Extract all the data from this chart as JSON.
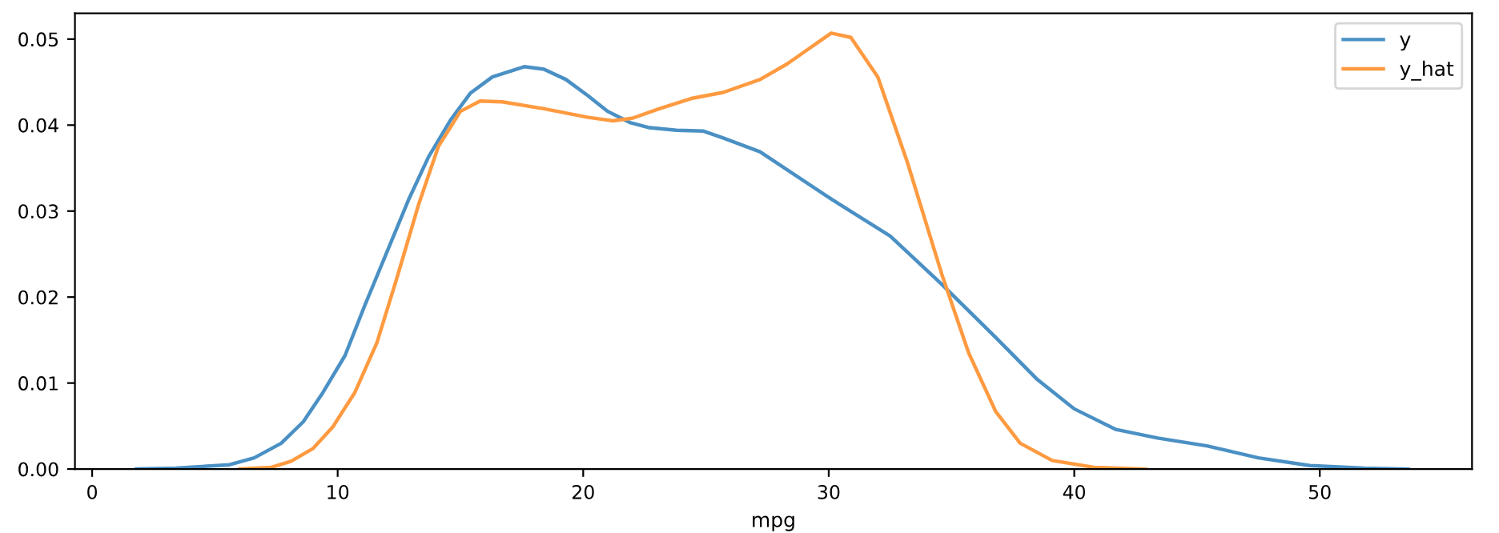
{
  "chart_data": {
    "type": "line",
    "xlabel": "mpg",
    "xlim": [
      -0.7,
      56.2
    ],
    "ylim": [
      0,
      0.053
    ],
    "xticks": [
      0,
      10,
      20,
      30,
      40,
      50
    ],
    "yticks": [
      {
        "value": 0,
        "label": "0.00"
      },
      {
        "value": 0.01,
        "label": "0.01"
      },
      {
        "value": 0.02,
        "label": "0.02"
      },
      {
        "value": 0.03,
        "label": "0.03"
      },
      {
        "value": 0.04,
        "label": "0.04"
      },
      {
        "value": 0.05,
        "label": "0.05"
      }
    ],
    "grid": false,
    "legend": "top right",
    "marker": "none",
    "line_style": "solid",
    "series": [
      {
        "name": "y",
        "color": "#4a90c4",
        "x": [
          1.8,
          3.4,
          5.6,
          6.6,
          7.7,
          8.6,
          9.4,
          10.3,
          11.1,
          12.0,
          12.9,
          13.7,
          14.6,
          15.4,
          16.3,
          17.6,
          18.4,
          19.3,
          20.2,
          21.0,
          21.9,
          22.7,
          23.8,
          24.9,
          25.7,
          27.2,
          30.1,
          32.5,
          34.6,
          36.8,
          38.5,
          40.0,
          41.7,
          43.4,
          45.4,
          47.5,
          49.6,
          51.8,
          53.6
        ],
        "values": [
          0,
          0.0001,
          0.0005,
          0.0013,
          0.003,
          0.0055,
          0.0089,
          0.0132,
          0.019,
          0.0252,
          0.0314,
          0.0363,
          0.0406,
          0.0437,
          0.0456,
          0.0468,
          0.0465,
          0.0453,
          0.0434,
          0.0416,
          0.0403,
          0.0397,
          0.0394,
          0.0393,
          0.0385,
          0.0369,
          0.0314,
          0.0271,
          0.0215,
          0.0153,
          0.0104,
          0.007,
          0.0046,
          0.0036,
          0.0027,
          0.0013,
          0.0004,
          0.0001,
          0
        ]
      },
      {
        "name": "y_hat",
        "color": "#ff9a40",
        "x": [
          6.0,
          7.3,
          8.1,
          9.0,
          9.8,
          10.7,
          11.6,
          12.4,
          13.3,
          14.1,
          15.0,
          15.8,
          16.7,
          18.4,
          20.2,
          21.2,
          22.0,
          23.1,
          24.4,
          25.7,
          27.2,
          28.3,
          30.1,
          30.9,
          32.0,
          33.2,
          34.6,
          35.7,
          36.8,
          37.8,
          39.1,
          40.8,
          42.9
        ],
        "values": [
          0,
          0.0002,
          0.0009,
          0.0024,
          0.0049,
          0.0089,
          0.0147,
          0.0221,
          0.0308,
          0.0375,
          0.0416,
          0.0428,
          0.0427,
          0.0419,
          0.0409,
          0.0405,
          0.0408,
          0.0419,
          0.0431,
          0.0438,
          0.0453,
          0.0471,
          0.0507,
          0.0502,
          0.0456,
          0.0357,
          0.0227,
          0.0135,
          0.0067,
          0.003,
          0.001,
          0.0002,
          0
        ]
      }
    ]
  }
}
